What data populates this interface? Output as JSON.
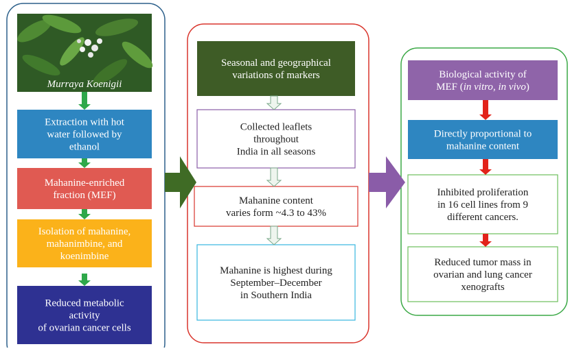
{
  "panels": [
    {
      "image_caption": "Murraya Koenigii",
      "boxes": [
        {
          "lines": [
            [
              "Extraction with hot"
            ],
            [
              "water followed by"
            ],
            [
              "ethanol"
            ]
          ]
        },
        {
          "lines": [
            [
              "Mahanine-enriched"
            ],
            [
              "fraction (MEF)"
            ]
          ]
        },
        {
          "lines": [
            [
              "Isolation of mahanine,"
            ],
            [
              "mahanimbine, and"
            ],
            [
              "koenimbine"
            ]
          ]
        },
        {
          "lines": [
            [
              "Reduced metabolic"
            ],
            [
              "activity"
            ],
            [
              "of ovarian cancer cells"
            ]
          ]
        }
      ]
    },
    {
      "boxes": [
        {
          "lines": [
            [
              "Seasonal and geographical"
            ],
            [
              "variations of markers"
            ]
          ]
        },
        {
          "lines": [
            [
              "Collected leaflets"
            ],
            [
              "throughout"
            ],
            [
              "India in all seasons"
            ]
          ]
        },
        {
          "lines": [
            [
              "Mahanine content"
            ],
            [
              "varies form ~4.3 to 43%"
            ]
          ]
        },
        {
          "lines": [
            [
              "Mahanine is highest during"
            ],
            [
              "September–December"
            ],
            [
              "in Southern India"
            ]
          ]
        }
      ]
    },
    {
      "boxes": [
        {
          "lines": [
            [
              "Biological activity of"
            ],
            [
              "MEF (",
              {
                "italic": "in vitro"
              },
              ", ",
              {
                "italic": "in vivo"
              },
              ")"
            ]
          ]
        },
        {
          "lines": [
            [
              "Directly proportional to"
            ],
            [
              "mahanine content"
            ]
          ]
        },
        {
          "lines": [
            [
              "Inhibited proliferation"
            ],
            [
              "in 16 cell lines from 9"
            ],
            [
              "different cancers."
            ]
          ]
        },
        {
          "lines": [
            [
              "Reduced tumor mass in"
            ],
            [
              "ovarian and lung cancer"
            ],
            [
              "xenografts"
            ]
          ]
        }
      ]
    }
  ]
}
